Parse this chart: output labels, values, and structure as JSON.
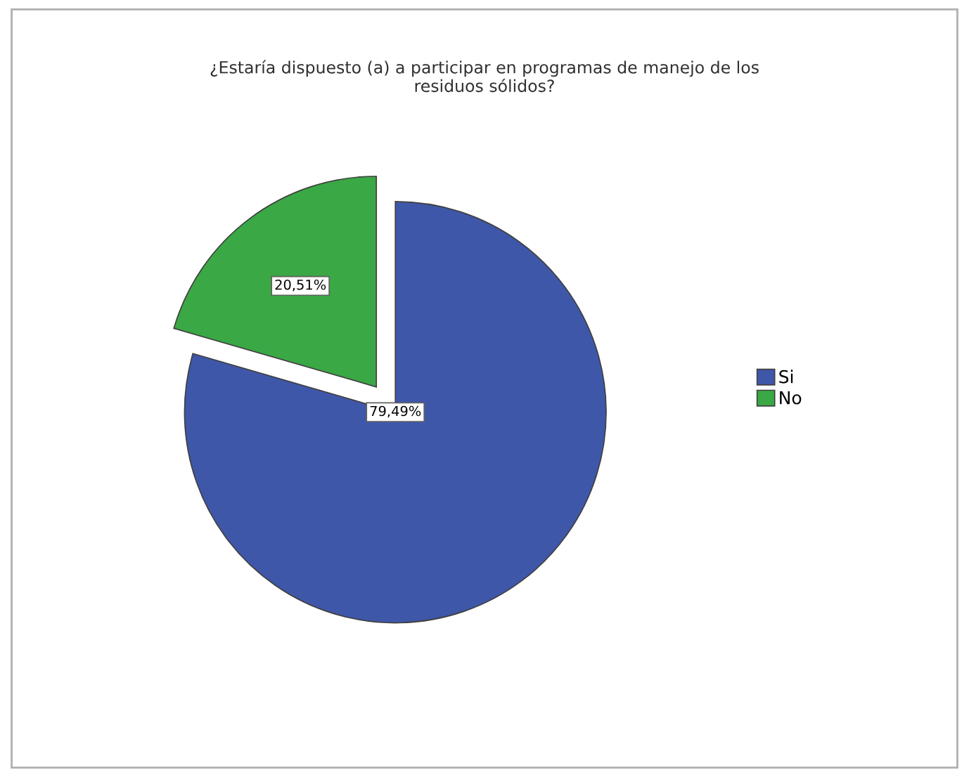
{
  "chart_data": {
    "type": "pie",
    "title": "¿Estaría dispuesto (a) a participar en programas de manejo de los\nresiduos sólidos?",
    "categories": [
      "Si",
      "No"
    ],
    "values": [
      79.49,
      20.51
    ],
    "colors": [
      "#3f57a9",
      "#3aa845"
    ],
    "value_labels": [
      "79,49%",
      "20,51%"
    ],
    "legend": "right"
  }
}
